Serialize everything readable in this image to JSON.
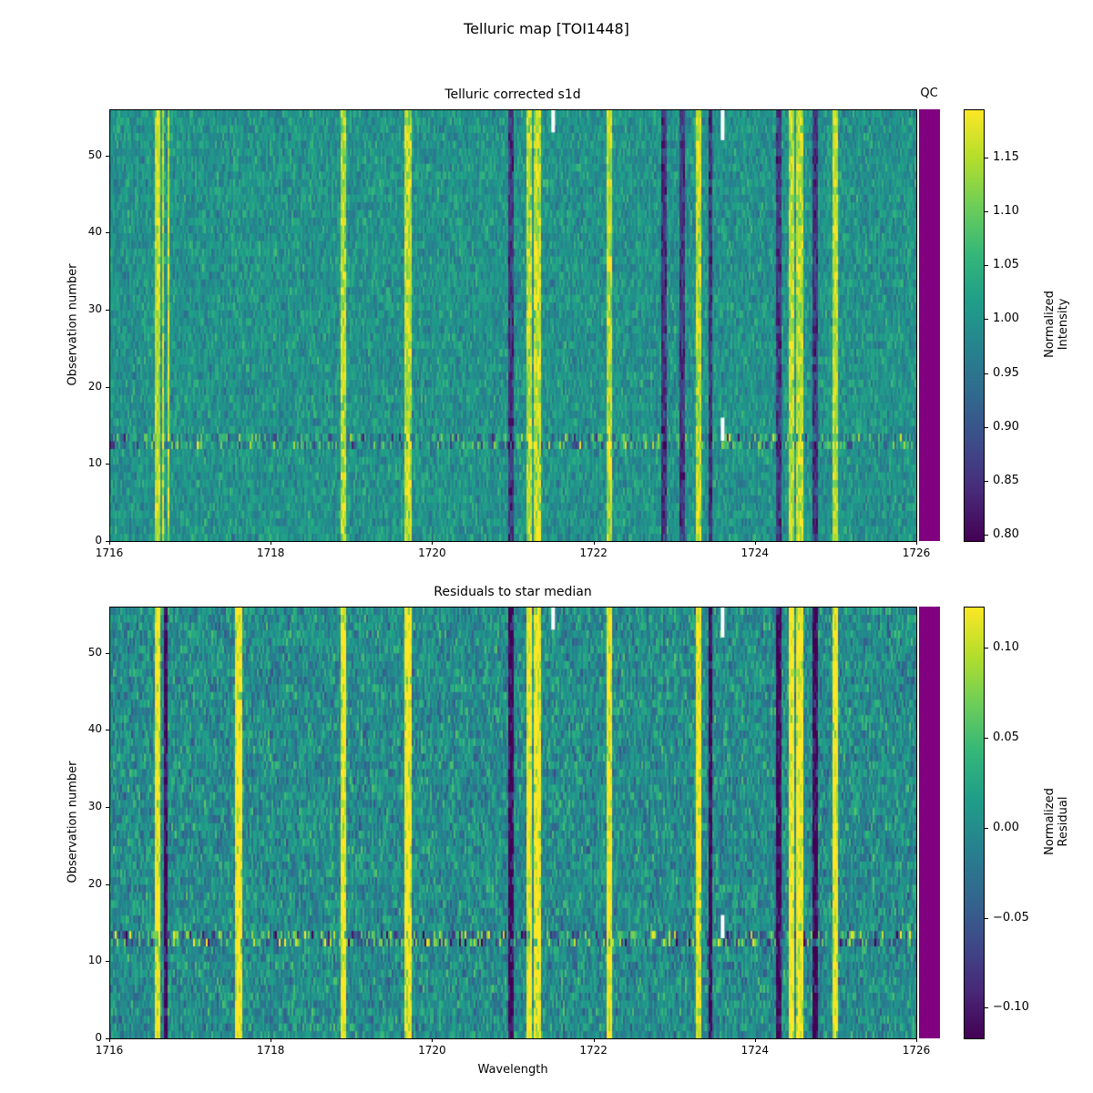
{
  "chart_data": [
    {
      "type": "heatmap",
      "title": "Telluric corrected s1d",
      "xlabel": "",
      "ylabel": "Observation number",
      "xlim": [
        1716,
        1726
      ],
      "ylim": [
        0,
        56
      ],
      "xticks": [
        "1716",
        "1718",
        "1720",
        "1722",
        "1724",
        "1726"
      ],
      "yticks": [
        "0",
        "10",
        "20",
        "30",
        "40",
        "50"
      ],
      "colorbar": {
        "label_lines": [
          "Normalized",
          "Intensity"
        ],
        "range": [
          0.794,
          1.195
        ],
        "ticks": [
          "0.80",
          "0.85",
          "0.90",
          "0.95",
          "1.00",
          "1.05",
          "1.10",
          "1.15"
        ],
        "colormap": "viridis"
      },
      "qc_label": "QC",
      "qc_color": "#800080",
      "baseline": 1.0,
      "noise": 0.05,
      "bright_lines": [
        1716.6,
        1716.7,
        1718.9,
        1719.7,
        1721.2,
        1721.3,
        1722.2,
        1723.3,
        1724.45,
        1724.55,
        1725.0
      ],
      "dark_lines": [
        1716.7,
        1720.97,
        1722.88,
        1723.1,
        1723.45,
        1724.3,
        1724.75
      ],
      "anomalous_rows": [
        12,
        13
      ],
      "masked": [
        [
          1721.5,
          53,
          56
        ],
        [
          1723.6,
          52,
          56
        ],
        [
          1723.6,
          13,
          16
        ]
      ]
    },
    {
      "type": "heatmap",
      "title": "Residuals to star median",
      "xlabel": "Wavelength",
      "ylabel": "Observation number",
      "xlim": [
        1716,
        1726
      ],
      "ylim": [
        0,
        56
      ],
      "xticks": [
        "1716",
        "1718",
        "1720",
        "1722",
        "1724",
        "1726"
      ],
      "yticks": [
        "0",
        "10",
        "20",
        "30",
        "40",
        "50"
      ],
      "colorbar": {
        "label_lines": [
          "Normalized",
          "Residual"
        ],
        "range": [
          -0.117,
          0.123
        ],
        "ticks": [
          "−0.10",
          "−0.05",
          "0.00",
          "0.05",
          "0.10"
        ],
        "colormap": "viridis"
      },
      "qc_color": "#800080",
      "baseline": 0.0,
      "noise": 0.04,
      "bright_lines": [
        1716.6,
        1717.6,
        1718.9,
        1719.7,
        1721.2,
        1721.3,
        1722.2,
        1723.3,
        1724.45,
        1724.55,
        1725.0
      ],
      "dark_lines": [
        1716.7,
        1720.97,
        1723.45,
        1724.3,
        1724.75
      ],
      "anomalous_rows": [
        12,
        13
      ],
      "masked": [
        [
          1721.5,
          53,
          56
        ],
        [
          1723.6,
          52,
          56
        ],
        [
          1723.6,
          13,
          16
        ]
      ]
    }
  ],
  "suptitle": "Telluric map [TOI1448]"
}
